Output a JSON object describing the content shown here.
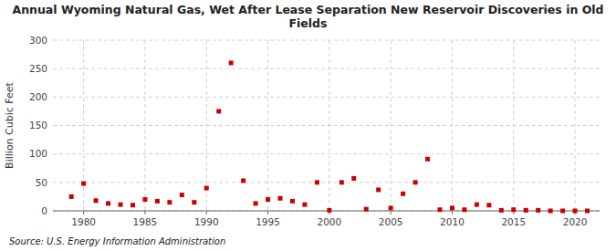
{
  "chart_data": {
    "type": "scatter",
    "title": "Annual Wyoming Natural Gas, Wet After Lease Separation New Reservoir Discoveries in Old\nFields",
    "ylabel": "Billion Cubic Feet",
    "source": "Source: U.S. Energy Information Administration",
    "x": [
      1979,
      1980,
      1981,
      1982,
      1983,
      1984,
      1985,
      1986,
      1987,
      1988,
      1989,
      1990,
      1991,
      1992,
      1993,
      1994,
      1995,
      1996,
      1997,
      1998,
      1999,
      2000,
      2001,
      2002,
      2003,
      2004,
      2005,
      2006,
      2007,
      2008,
      2009,
      2010,
      2011,
      2012,
      2013,
      2014,
      2015,
      2016,
      2017,
      2018,
      2019,
      2020,
      2021
    ],
    "values": [
      25,
      48,
      18,
      13,
      11,
      10,
      20,
      17,
      15,
      28,
      15,
      40,
      175,
      260,
      53,
      13,
      20,
      22,
      17,
      11,
      50,
      1,
      50,
      57,
      3,
      37,
      5,
      30,
      50,
      91,
      2,
      5,
      2,
      11,
      10,
      1,
      2,
      1,
      1,
      0,
      0,
      0,
      0
    ],
    "color": "#cc0000",
    "marker": "square",
    "xlim": [
      1977.5,
      2022
    ],
    "ylim": [
      0,
      300
    ],
    "xticks": [
      1980,
      1985,
      1990,
      1995,
      2000,
      2005,
      2010,
      2015,
      2020
    ],
    "yticks": [
      0,
      50,
      100,
      150,
      200,
      250,
      300
    ],
    "grid": true
  }
}
